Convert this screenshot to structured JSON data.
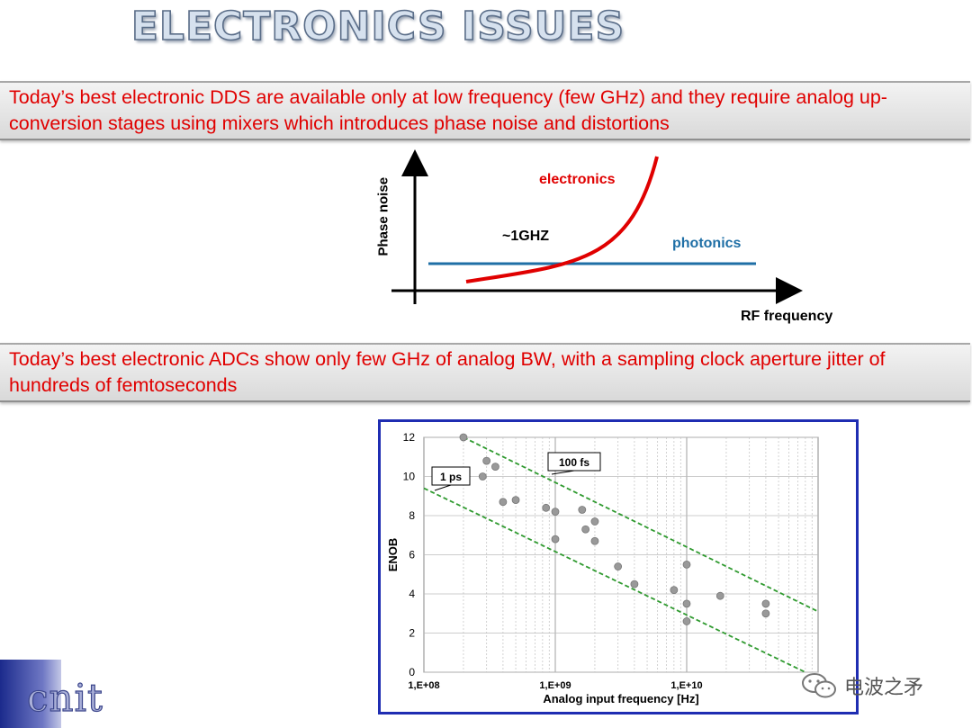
{
  "slide": {
    "title": "ELECTRONICS ISSUES",
    "banner_1": "Today’s best electronic DDS are available only at low frequency (few GHz) and they require analog up-conversion stages using mixers which introduces phase noise and distortions",
    "banner_2": "Today’s best electronic ADCs show only few GHz of analog BW, with a sampling clock aperture jitter of hundreds of femtoseconds"
  },
  "sketch": {
    "ylabel": "Phase noise",
    "xlabel": "RF frequency",
    "crossover_label": "~1GHZ",
    "curves": [
      {
        "name": "electronics",
        "color": "#e00000"
      },
      {
        "name": "photonics",
        "color": "#1f6fa6"
      }
    ]
  },
  "chart_data": {
    "type": "scatter",
    "xlabel": "Analog input frequency [Hz]",
    "ylabel": "ENOB",
    "xscale": "log",
    "xlim": [
      100000000,
      100000000000
    ],
    "ylim": [
      0,
      12
    ],
    "x_ticks": [
      {
        "value": 100000000,
        "label": "1,E+08"
      },
      {
        "value": 1000000000,
        "label": "1,E+09"
      },
      {
        "value": 10000000000,
        "label": "1,E+10"
      }
    ],
    "y_ticks": [
      0,
      2,
      4,
      6,
      8,
      10,
      12
    ],
    "grid": true,
    "point_color": "#999999",
    "series": [
      {
        "points": [
          [
            200000000,
            12.0
          ],
          [
            280000000,
            10.0
          ],
          [
            300000000,
            10.8
          ],
          [
            350000000,
            10.5
          ],
          [
            400000000,
            8.7
          ],
          [
            500000000,
            8.8
          ],
          [
            850000000,
            8.4
          ],
          [
            1000000000,
            8.2
          ],
          [
            1000000000,
            6.8
          ],
          [
            1600000000,
            8.3
          ],
          [
            1700000000,
            7.3
          ],
          [
            2000000000,
            7.7
          ],
          [
            2000000000,
            6.7
          ],
          [
            3000000000,
            5.4
          ],
          [
            4000000000,
            4.5
          ],
          [
            8000000000,
            4.2
          ],
          [
            10000000000,
            5.5
          ],
          [
            10000000000,
            3.5
          ],
          [
            10000000000,
            2.6
          ],
          [
            18000000000,
            3.9
          ],
          [
            40000000000,
            3.5
          ],
          [
            40000000000,
            3.0
          ]
        ]
      }
    ],
    "annotations": [
      {
        "label": "1 ps",
        "line": [
          [
            100000000,
            9.4
          ],
          [
            80000000000,
            0.0
          ]
        ]
      },
      {
        "label": "100 fs",
        "line": [
          [
            200000000,
            12.0
          ],
          [
            100000000000,
            3.1
          ]
        ]
      }
    ]
  },
  "branding": {
    "logo": "cnit",
    "watermark": "电波之矛"
  }
}
